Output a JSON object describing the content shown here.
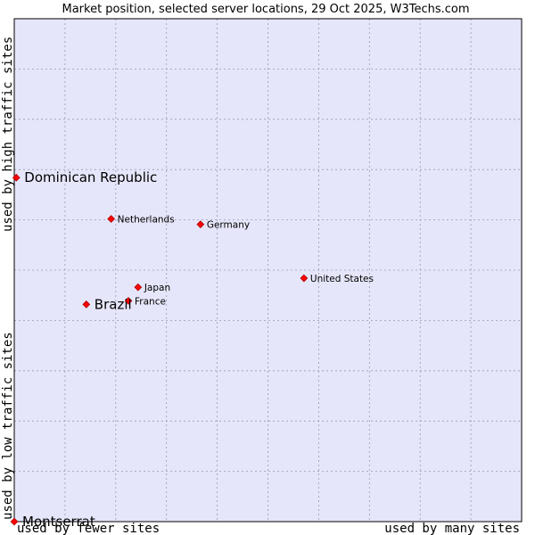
{
  "chart_data": {
    "type": "scatter",
    "title": "Market position, selected server locations, 29 Oct 2025, W3Techs.com",
    "xlabel_left": "used by fewer sites",
    "xlabel_right": "used by many sites",
    "ylabel_top": "used by high traffic sites",
    "ylabel_bottom": "used by low traffic sites",
    "xlim": [
      0,
      100
    ],
    "ylim": [
      0,
      100
    ],
    "grid": true,
    "colors": {
      "plot_background": "#e6e6fa",
      "grid": "#9a9ab0",
      "point": "#ff0000",
      "point_outline": "#aa0000",
      "text": "#000000"
    },
    "points": [
      {
        "label": "Dominican Republic",
        "x": 0.4,
        "y": 68.4,
        "emphasis": true
      },
      {
        "label": "Netherlands",
        "x": 19.1,
        "y": 60.2,
        "emphasis": false
      },
      {
        "label": "Germany",
        "x": 36.7,
        "y": 59.1,
        "emphasis": false
      },
      {
        "label": "United States",
        "x": 57.1,
        "y": 48.4,
        "emphasis": false
      },
      {
        "label": "Japan",
        "x": 24.4,
        "y": 46.6,
        "emphasis": false
      },
      {
        "label": "France",
        "x": 22.5,
        "y": 43.9,
        "emphasis": false
      },
      {
        "label": "Brazil",
        "x": 14.2,
        "y": 43.2,
        "emphasis": true
      },
      {
        "label": "Montserrat",
        "x": 0,
        "y": 0,
        "emphasis": true
      }
    ]
  }
}
